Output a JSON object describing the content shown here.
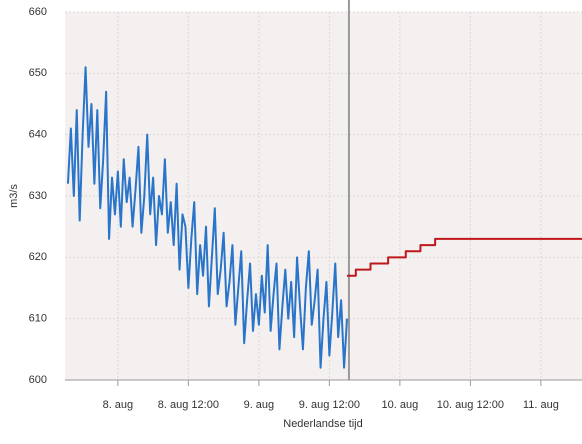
{
  "chart_data": {
    "type": "line",
    "y_label": "m3/s",
    "x_label": "Nederlandse tijd",
    "ylim": [
      600,
      660
    ],
    "yticks": [
      600,
      610,
      620,
      630,
      640,
      650,
      660
    ],
    "xlim": [
      "7. aug 15:00",
      "11. aug 07:00"
    ],
    "xticks": [
      {
        "value": "8. aug 00:00",
        "label": "8. aug"
      },
      {
        "value": "8. aug 12:00",
        "label": "8. aug 12:00"
      },
      {
        "value": "9. aug 00:00",
        "label": "9. aug"
      },
      {
        "value": "9. aug 12:00",
        "label": "9. aug 12:00"
      },
      {
        "value": "10. aug 00:00",
        "label": "10. aug"
      },
      {
        "value": "10. aug 12:00",
        "label": "10. aug 12:00"
      },
      {
        "value": "11. aug 00:00",
        "label": "11. aug"
      }
    ],
    "grid": true,
    "vline_x": "9. aug 15:20",
    "vline_color": "#999999",
    "background": "#f3f0ef",
    "series": [
      {
        "color": "#2a75c9",
        "step": false,
        "x": [
          "7. aug 15:30",
          "7. aug 16:00",
          "7. aug 16:30",
          "7. aug 17:00",
          "7. aug 17:30",
          "7. aug 18:00",
          "7. aug 18:30",
          "7. aug 19:00",
          "7. aug 19:30",
          "7. aug 20:00",
          "7. aug 20:30",
          "7. aug 21:00",
          "7. aug 21:30",
          "7. aug 22:00",
          "7. aug 22:30",
          "7. aug 23:00",
          "7. aug 23:30",
          "8. aug 00:00",
          "8. aug 00:30",
          "8. aug 01:00",
          "8. aug 01:30",
          "8. aug 02:00",
          "8. aug 02:30",
          "8. aug 03:00",
          "8. aug 03:30",
          "8. aug 04:00",
          "8. aug 04:30",
          "8. aug 05:00",
          "8. aug 05:30",
          "8. aug 06:00",
          "8. aug 06:30",
          "8. aug 07:00",
          "8. aug 07:30",
          "8. aug 08:00",
          "8. aug 08:30",
          "8. aug 09:00",
          "8. aug 09:30",
          "8. aug 10:00",
          "8. aug 10:30",
          "8. aug 11:00",
          "8. aug 11:30",
          "8. aug 12:00",
          "8. aug 12:30",
          "8. aug 13:00",
          "8. aug 13:30",
          "8. aug 14:00",
          "8. aug 14:30",
          "8. aug 15:00",
          "8. aug 15:30",
          "8. aug 16:00",
          "8. aug 16:30",
          "8. aug 17:00",
          "8. aug 17:30",
          "8. aug 18:00",
          "8. aug 18:30",
          "8. aug 19:00",
          "8. aug 19:30",
          "8. aug 20:00",
          "8. aug 20:30",
          "8. aug 21:00",
          "8. aug 21:30",
          "8. aug 22:00",
          "8. aug 22:30",
          "8. aug 23:00",
          "8. aug 23:30",
          "9. aug 00:00",
          "9. aug 00:30",
          "9. aug 01:00",
          "9. aug 01:30",
          "9. aug 02:00",
          "9. aug 02:30",
          "9. aug 03:00",
          "9. aug 03:30",
          "9. aug 04:00",
          "9. aug 04:30",
          "9. aug 05:00",
          "9. aug 05:30",
          "9. aug 06:00",
          "9. aug 06:30",
          "9. aug 07:00",
          "9. aug 07:30",
          "9. aug 08:00",
          "9. aug 08:30",
          "9. aug 09:00",
          "9. aug 09:30",
          "9. aug 10:00",
          "9. aug 10:30",
          "9. aug 11:00",
          "9. aug 11:30",
          "9. aug 12:00",
          "9. aug 12:30",
          "9. aug 13:00",
          "9. aug 13:30",
          "9. aug 14:00",
          "9. aug 14:30",
          "9. aug 15:00"
        ],
        "values": [
          632,
          641,
          630,
          644,
          626,
          640,
          651,
          638,
          645,
          632,
          644,
          628,
          636,
          647,
          623,
          633,
          627,
          634,
          625,
          636,
          629,
          633,
          625,
          631,
          638,
          624,
          630,
          640,
          627,
          633,
          622,
          630,
          627,
          636,
          624,
          629,
          622,
          632,
          618,
          627,
          625,
          615,
          623,
          629,
          614,
          622,
          617,
          625,
          612,
          620,
          628,
          614,
          618,
          624,
          612,
          616,
          622,
          609,
          615,
          621,
          606,
          613,
          619,
          608,
          614,
          609,
          617,
          611,
          622,
          608,
          614,
          619,
          605,
          612,
          618,
          610,
          616,
          607,
          620,
          612,
          605,
          615,
          621,
          609,
          613,
          618,
          602,
          610,
          616,
          604,
          611,
          619,
          607,
          613,
          602,
          610
        ]
      },
      {
        "color": "#c0171b",
        "step": true,
        "x": [
          "9. aug 15:00",
          "9. aug 16:30",
          "9. aug 19:00",
          "9. aug 22:00",
          "10. aug 01:00",
          "10. aug 03:30",
          "10. aug 06:00",
          "11. aug 07:00"
        ],
        "values": [
          617,
          618,
          619,
          620,
          621,
          622,
          623,
          623
        ]
      }
    ]
  }
}
